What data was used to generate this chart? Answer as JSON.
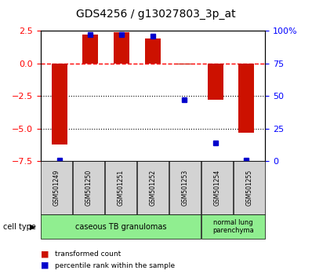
{
  "title": "GDS4256 / g13027803_3p_at",
  "samples": [
    "GSM501249",
    "GSM501250",
    "GSM501251",
    "GSM501252",
    "GSM501253",
    "GSM501254",
    "GSM501255"
  ],
  "transformed_count": [
    -6.2,
    2.2,
    2.4,
    1.9,
    -0.1,
    -2.8,
    -5.3
  ],
  "percentile_rank": [
    1,
    97,
    97,
    96,
    47,
    14,
    1
  ],
  "ylim_left": [
    -7.5,
    2.5
  ],
  "ylim_right": [
    0,
    100
  ],
  "yticks_left": [
    2.5,
    0,
    -2.5,
    -5.0,
    -7.5
  ],
  "yticks_right": [
    100,
    75,
    50,
    25,
    0
  ],
  "ytick_labels_right": [
    "100%",
    "75",
    "50",
    "25",
    "0"
  ],
  "bar_color": "#CC1100",
  "dot_color": "#0000CC",
  "dotted_lines": [
    -2.5,
    -5.0
  ],
  "bar_width": 0.5,
  "legend_labels": [
    "transformed count",
    "percentile rank within the sample"
  ],
  "legend_colors": [
    "#CC1100",
    "#0000CC"
  ],
  "group1_label": "caseous TB granulomas",
  "group2_label": "normal lung\nparenchyma",
  "group_color": "#90EE90",
  "sample_box_color": "#D3D3D3",
  "cell_type_label": "cell type"
}
